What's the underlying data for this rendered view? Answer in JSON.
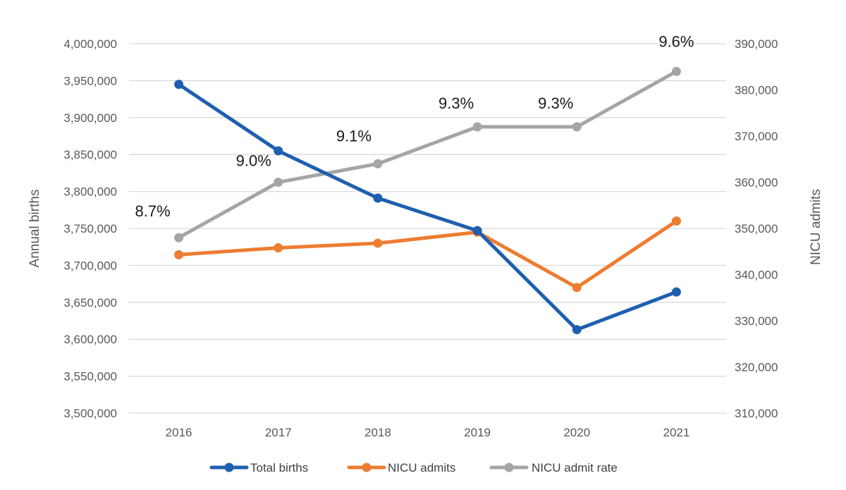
{
  "chart_data": {
    "type": "line",
    "categories": [
      "2016",
      "2017",
      "2018",
      "2019",
      "2020",
      "2021"
    ],
    "left_axis": {
      "label": "Annual births",
      "ylim": [
        3500000,
        4000000
      ],
      "ticks": [
        "3,500,000",
        "3,550,000",
        "3,600,000",
        "3,650,000",
        "3,700,000",
        "3,750,000",
        "3,800,000",
        "3,850,000",
        "3,900,000",
        "3,950,000",
        "4,000,000"
      ]
    },
    "right_axis": {
      "label": "NICU admits",
      "ylim": [
        310000,
        390000
      ],
      "ticks": [
        "310,000",
        "320,000",
        "330,000",
        "340,000",
        "350,000",
        "360,000",
        "370,000",
        "380,000",
        "390,000"
      ]
    },
    "series": [
      {
        "name": "Total births",
        "axis": "left",
        "color": "#1f5faf",
        "values": [
          3945000,
          3855000,
          3791000,
          3747000,
          3613000,
          3664000
        ]
      },
      {
        "name": "NICU admits",
        "axis": "right",
        "color": "#ed7d31",
        "values": [
          344300,
          345800,
          346800,
          349200,
          337200,
          351600
        ]
      },
      {
        "name": "NICU admit rate",
        "axis": "right",
        "color": "#a5a5a5",
        "values": [
          348000,
          360000,
          364000,
          372000,
          372000,
          384000
        ],
        "labels": [
          "8.7%",
          "9.0%",
          "9.1%",
          "9.3%",
          "9.3%",
          "9.6%"
        ]
      }
    ],
    "grid": true,
    "legend": "bottom"
  }
}
